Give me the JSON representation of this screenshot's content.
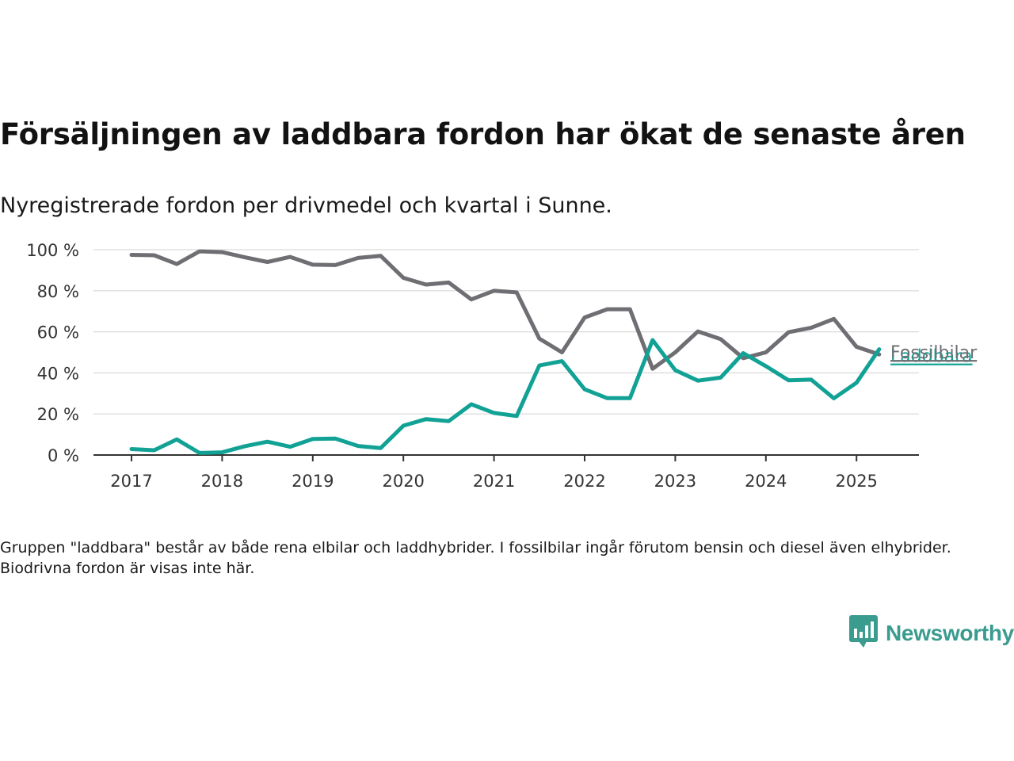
{
  "title": "Försäljningen av laddbara fordon har ökat de senaste åren",
  "subtitle": "Nyregistrerade fordon per drivmedel och kvartal i Sunne.",
  "note": "Gruppen \"laddbara\" består av både rena elbilar och laddhybrider. I fossilbilar ingår förutom bensin och diesel även elhybrider. Biodrivna fordon är visas inte här.",
  "brand": {
    "name": "Newsworthy",
    "color": "#3a9b8f",
    "icon": "bar-chart-speech-bubble-icon"
  },
  "chart_data": {
    "type": "line",
    "x_tick_labels": [
      "2017",
      "2018",
      "2019",
      "2020",
      "2021",
      "2022",
      "2023",
      "2024",
      "2025"
    ],
    "y_tick_labels": [
      "0 %",
      "20 %",
      "40 %",
      "60 %",
      "80 %",
      "100 %"
    ],
    "ylim": [
      0,
      100
    ],
    "grid": true,
    "x": [
      "2017Q1",
      "2017Q2",
      "2017Q3",
      "2017Q4",
      "2018Q1",
      "2018Q2",
      "2018Q3",
      "2018Q4",
      "2019Q1",
      "2019Q2",
      "2019Q3",
      "2019Q4",
      "2020Q1",
      "2020Q2",
      "2020Q3",
      "2020Q4",
      "2021Q1",
      "2021Q2",
      "2021Q3",
      "2021Q4",
      "2022Q1",
      "2022Q2",
      "2022Q3",
      "2022Q4",
      "2023Q1",
      "2023Q2",
      "2023Q3",
      "2023Q4",
      "2024Q1",
      "2024Q2",
      "2024Q3",
      "2024Q4",
      "2025Q1",
      "2025Q2"
    ],
    "series": [
      {
        "name": "Fossilbilar",
        "color": "#6e6e73",
        "values": [
          97.5,
          97.3,
          93.0,
          99.2,
          98.8,
          96.3,
          94.0,
          96.5,
          92.7,
          92.5,
          96.0,
          97.0,
          86.3,
          83.0,
          84.0,
          75.8,
          80.0,
          79.2,
          56.7,
          50.0,
          67.0,
          71.0,
          71.0,
          42.0,
          50.0,
          60.2,
          56.5,
          47.2,
          50.0,
          59.8,
          62.0,
          66.3,
          52.7,
          49.0
        ]
      },
      {
        "name": "Laddbara",
        "color": "#12a295",
        "values": [
          2.9,
          2.3,
          7.6,
          1.0,
          1.3,
          4.3,
          6.5,
          4.0,
          7.8,
          8.0,
          4.4,
          3.4,
          14.3,
          17.5,
          16.5,
          24.7,
          20.5,
          19.0,
          43.6,
          45.7,
          32.0,
          27.7,
          27.7,
          56.0,
          41.3,
          36.2,
          37.7,
          49.6,
          43.3,
          36.4,
          36.7,
          27.6,
          35.2,
          51.5
        ]
      }
    ]
  }
}
